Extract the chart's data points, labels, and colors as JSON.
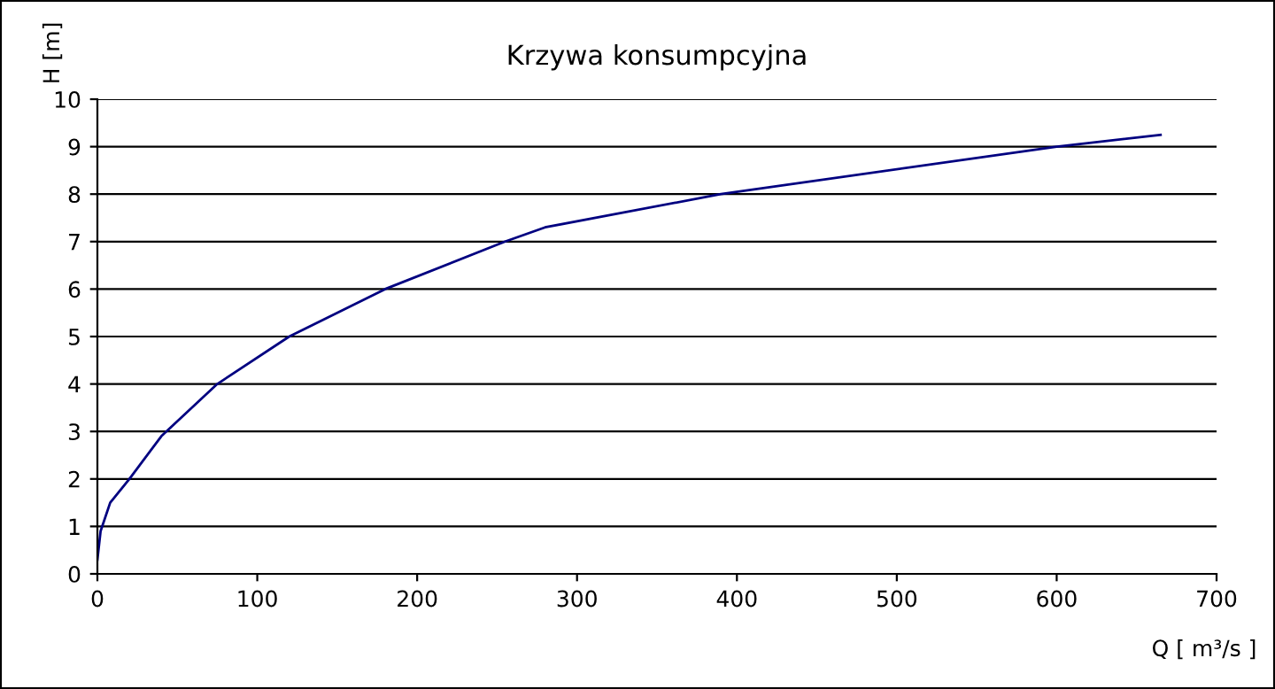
{
  "chart_data": {
    "type": "line",
    "title": "Krzywa konsumpcyjna",
    "xlabel": "Q [ m³/s ]",
    "ylabel": "H [m]",
    "x": [
      0,
      2,
      8,
      20,
      40,
      75,
      120,
      180,
      255,
      280,
      390,
      600,
      665
    ],
    "series": [
      {
        "color": "#000080",
        "values": [
          0.3,
          0.9,
          1.5,
          2.0,
          2.9,
          4.0,
          5.0,
          6.0,
          7.0,
          7.3,
          8.0,
          9.0,
          9.25
        ]
      }
    ],
    "xlim": [
      0,
      700
    ],
    "ylim": [
      0,
      10
    ],
    "xticks": [
      0,
      100,
      200,
      300,
      400,
      500,
      600,
      700
    ],
    "yticks": [
      0,
      1,
      2,
      3,
      4,
      5,
      6,
      7,
      8,
      9,
      10
    ],
    "grid": "y",
    "legend": false,
    "marker": "none",
    "line_style": "solid"
  }
}
